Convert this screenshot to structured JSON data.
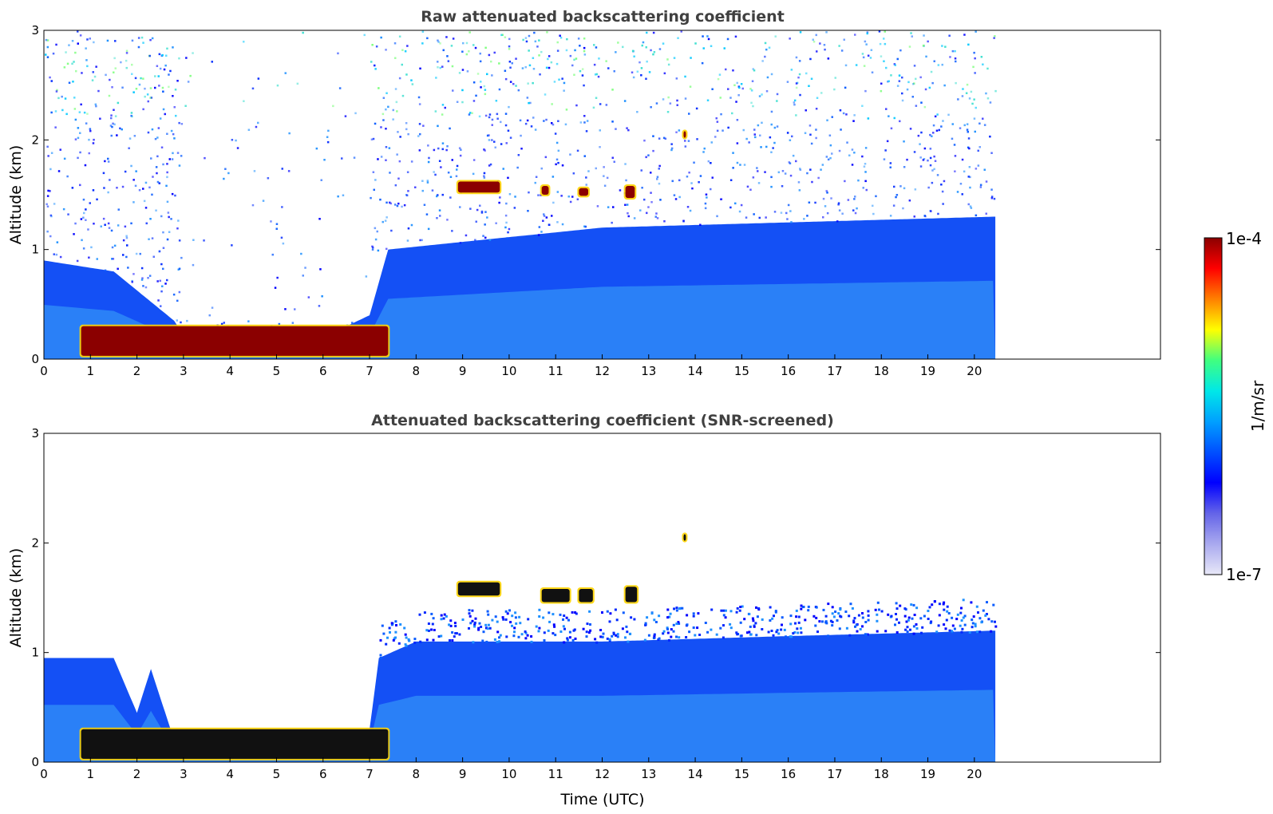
{
  "chart_data": [
    {
      "type": "heatmap",
      "title": "Raw attenuated backscattering coefficient",
      "xlabel": "",
      "ylabel": "Altitude (km)",
      "xlim": [
        0,
        24
      ],
      "ylim": [
        0,
        3
      ],
      "x_ticks": [
        0,
        1,
        2,
        3,
        4,
        5,
        6,
        7,
        8,
        9,
        10,
        11,
        12,
        13,
        14,
        15,
        16,
        17,
        18,
        19,
        20
      ],
      "y_ticks": [
        0,
        1,
        2,
        3
      ],
      "data_extent_hours": [
        0,
        20.45
      ],
      "scale": "log",
      "features": [
        {
          "label": "nocturnal surface layer",
          "time": [
            0.8,
            7.4
          ],
          "altitude_km": [
            0.03,
            0.3
          ],
          "value": "1e-4"
        },
        {
          "label": "cloud",
          "time": [
            8.9,
            9.8
          ],
          "altitude_km": [
            1.52,
            1.62
          ],
          "value": "1e-4"
        },
        {
          "label": "cloud",
          "time": [
            10.7,
            10.85
          ],
          "altitude_km": [
            1.5,
            1.58
          ],
          "value": "1e-4"
        },
        {
          "label": "cloud",
          "time": [
            11.5,
            11.7
          ],
          "altitude_km": [
            1.49,
            1.56
          ],
          "value": "1e-4"
        },
        {
          "label": "cloud",
          "time": [
            12.5,
            12.7
          ],
          "altitude_km": [
            1.47,
            1.58
          ],
          "value": "1e-4"
        },
        {
          "label": "cloud",
          "time": [
            13.75,
            13.8
          ],
          "altitude_km": [
            2.02,
            2.08
          ],
          "value": "1e-4"
        }
      ]
    },
    {
      "type": "heatmap",
      "title": "Attenuated backscattering coefficient (SNR-screened)",
      "xlabel": "Time (UTC)",
      "ylabel": "Altitude (km)",
      "xlim": [
        0,
        24
      ],
      "ylim": [
        0,
        3
      ],
      "x_ticks": [
        0,
        1,
        2,
        3,
        4,
        5,
        6,
        7,
        8,
        9,
        10,
        11,
        12,
        13,
        14,
        15,
        16,
        17,
        18,
        19,
        20
      ],
      "y_ticks": [
        0,
        1,
        2,
        3
      ],
      "data_extent_hours": [
        0,
        20.45
      ],
      "scale": "log",
      "boundary_layer_top_km": [
        [
          0,
          0.95
        ],
        [
          1.5,
          0.95
        ],
        [
          2.0,
          0.45
        ],
        [
          2.3,
          0.85
        ],
        [
          2.8,
          0.2
        ],
        [
          4.0,
          0.18
        ],
        [
          6.0,
          0.28
        ],
        [
          7.0,
          0.3
        ],
        [
          7.2,
          0.95
        ],
        [
          8.0,
          1.1
        ],
        [
          12.0,
          1.1
        ],
        [
          16.0,
          1.15
        ],
        [
          20.45,
          1.2
        ]
      ],
      "features": [
        {
          "label": "nocturnal surface layer",
          "time": [
            0.8,
            7.4
          ],
          "altitude_km": [
            0.03,
            0.3
          ],
          "value": "1e-4"
        },
        {
          "label": "cloud",
          "time": [
            8.9,
            9.8
          ],
          "altitude_km": [
            1.52,
            1.64
          ],
          "value": "1e-4"
        },
        {
          "label": "cloud",
          "time": [
            10.7,
            11.3
          ],
          "altitude_km": [
            1.46,
            1.58
          ],
          "value": "1e-4"
        },
        {
          "label": "cloud",
          "time": [
            11.5,
            11.8
          ],
          "altitude_km": [
            1.46,
            1.58
          ],
          "value": "1e-4"
        },
        {
          "label": "cloud",
          "time": [
            12.5,
            12.75
          ],
          "altitude_km": [
            1.46,
            1.6
          ],
          "value": "1e-4"
        },
        {
          "label": "cloud",
          "time": [
            13.75,
            13.8
          ],
          "altitude_km": [
            2.02,
            2.08
          ],
          "value": "1e-4"
        }
      ]
    }
  ],
  "colorbar": {
    "label": "1/m/sr",
    "max_label": "1e-4",
    "min_label": "1e-7",
    "colors": [
      "#e8e8f8",
      "#a9a9ef",
      "#6464e8",
      "#0000ff",
      "#0050ff",
      "#00a0ff",
      "#00e8e8",
      "#40ff80",
      "#ffff00",
      "#ff8000",
      "#ff0000",
      "#8b0000"
    ]
  }
}
